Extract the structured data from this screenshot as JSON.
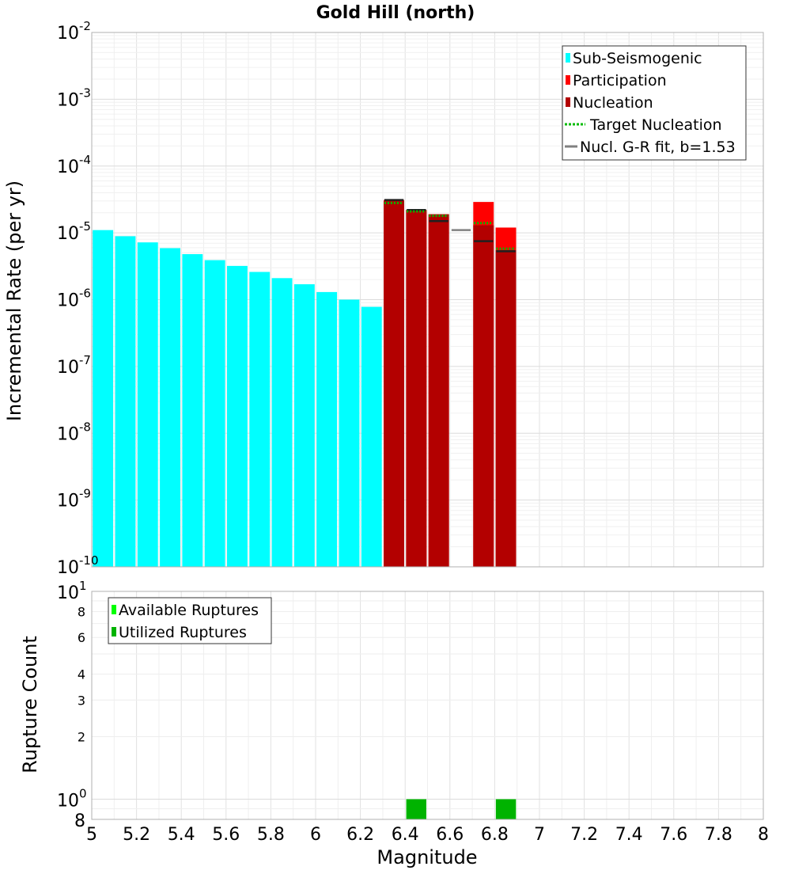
{
  "chart_data": {
    "title": "Gold Hill (north)",
    "xlabel": "Magnitude",
    "xlim": [
      5,
      8
    ],
    "x_ticks": [
      "5",
      "5.2",
      "5.4",
      "5.6",
      "5.8",
      "6",
      "6.2",
      "6.4",
      "6.6",
      "6.8",
      "7",
      "7.2",
      "7.4",
      "7.6",
      "7.8",
      "8"
    ],
    "bin_width": 0.1,
    "top_panel": {
      "type": "bar",
      "ylabel": "Incremental Rate (per yr)",
      "yscale": "log",
      "ylim": [
        1e-10,
        0.01
      ],
      "y_tick_labels": [
        {
          "base": "10",
          "exp": "-2"
        },
        {
          "base": "10",
          "exp": "-3"
        },
        {
          "base": "10",
          "exp": "-4"
        },
        {
          "base": "10",
          "exp": "-5"
        },
        {
          "base": "10",
          "exp": "-6"
        },
        {
          "base": "10",
          "exp": "-7"
        },
        {
          "base": "10",
          "exp": "-8"
        },
        {
          "base": "10",
          "exp": "-9"
        },
        {
          "base": "10",
          "exp": "-10"
        }
      ],
      "legend": [
        {
          "label": "Sub-Seismogenic",
          "kind": "box",
          "color": "#00ffff"
        },
        {
          "label": "Participation",
          "kind": "box",
          "color": "#ff0000"
        },
        {
          "label": "Nucleation",
          "kind": "box",
          "color": "#b30000"
        },
        {
          "label": "Target Nucleation",
          "kind": "dotted",
          "color": "#00bb00"
        },
        {
          "label": "Nucl. G-R fit, b=1.53",
          "kind": "line",
          "color": "#808080"
        }
      ],
      "series": [
        {
          "name": "Sub-Seismogenic",
          "color": "#00ffff",
          "x": [
            5.05,
            5.15,
            5.25,
            5.35,
            5.45,
            5.55,
            5.65,
            5.75,
            5.85,
            5.95,
            6.05,
            6.15,
            6.25
          ],
          "values": [
            1.1e-05,
            8.9e-06,
            7.2e-06,
            5.9e-06,
            4.8e-06,
            3.9e-06,
            3.2e-06,
            2.6e-06,
            2.1e-06,
            1.7e-06,
            1.3e-06,
            1e-06,
            7.8e-07
          ]
        },
        {
          "name": "Participation",
          "color": "#ff0000",
          "x": [
            6.35,
            6.45,
            6.55,
            6.75,
            6.85
          ],
          "values": [
            3.1e-05,
            2.2e-05,
            1.9e-05,
            2.9e-05,
            1.2e-05
          ]
        },
        {
          "name": "Nucleation",
          "color": "#b30000",
          "x": [
            6.35,
            6.45,
            6.55,
            6.75,
            6.85
          ],
          "values": [
            3e-05,
            2.2e-05,
            1.9e-05,
            1.3e-05,
            5.5e-06
          ]
        },
        {
          "name": "Target Nucleation",
          "color": "#00bb00",
          "x": [
            6.35,
            6.45,
            6.55,
            6.75,
            6.85
          ],
          "values": [
            2.8e-05,
            2.1e-05,
            1.8e-05,
            1.4e-05,
            5.8e-06
          ]
        },
        {
          "name": "Nucl. G-R fit, b=1.53",
          "color": "#808080",
          "x": [
            6.35,
            6.45,
            6.55,
            6.65,
            6.75,
            6.85
          ],
          "values": [
            3.1e-05,
            2.2e-05,
            1.5e-05,
            1.1e-05,
            7.5e-06,
            5.3e-06
          ]
        }
      ]
    },
    "bottom_panel": {
      "type": "bar",
      "ylabel": "Rupture Count",
      "yscale": "log",
      "ylim": [
        0.8,
        10
      ],
      "y_tick_labels": [
        {
          "value": 10,
          "base": "10",
          "exp": "1"
        },
        {
          "value": 8,
          "label": "8"
        },
        {
          "value": 6,
          "label": "6"
        },
        {
          "value": 4,
          "label": "4"
        },
        {
          "value": 3,
          "label": "3"
        },
        {
          "value": 2,
          "label": "2"
        },
        {
          "value": 1,
          "base": "10",
          "exp": "0"
        },
        {
          "value": 0.8,
          "label": "8"
        }
      ],
      "legend": [
        {
          "label": "Available Ruptures",
          "kind": "box",
          "color": "#00ff00"
        },
        {
          "label": "Utilized Ruptures",
          "kind": "box",
          "color": "#00b300"
        }
      ],
      "series": [
        {
          "name": "Available Ruptures",
          "color": "#00ff00",
          "x": [
            6.45,
            6.85
          ],
          "values": [
            1,
            1
          ]
        },
        {
          "name": "Utilized Ruptures",
          "color": "#00b300",
          "x": [
            6.45,
            6.85
          ],
          "values": [
            1,
            1
          ]
        }
      ]
    }
  }
}
